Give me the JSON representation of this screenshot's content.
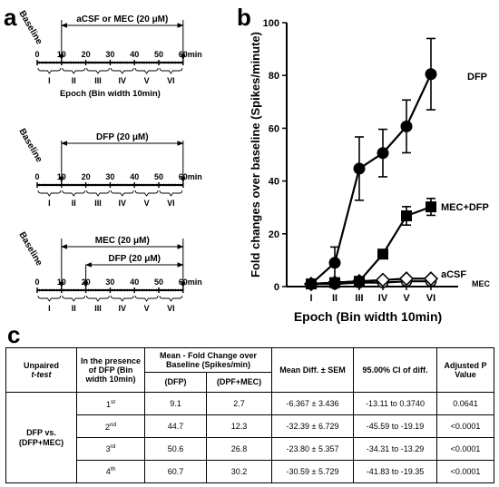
{
  "panels": {
    "a": {
      "label": "a",
      "schedules": [
        {
          "treatments": [
            {
              "label": "aCSF or MEC (20 μM)",
              "start": 10,
              "end": 60
            }
          ],
          "baseline_label": "Baseline",
          "ticks": [
            "0",
            "10",
            "20",
            "30",
            "40",
            "50",
            "60"
          ],
          "unit": "min",
          "epochs": [
            "I",
            "II",
            "III",
            "IV",
            "V",
            "VI"
          ],
          "epoch_caption": "Epoch (Bin width 10min)"
        },
        {
          "treatments": [
            {
              "label": "DFP (20 μM)",
              "start": 10,
              "end": 60
            }
          ],
          "baseline_label": "Baseline",
          "ticks": [
            "0",
            "10",
            "20",
            "30",
            "40",
            "50",
            "60"
          ],
          "unit": "min",
          "epochs": [
            "I",
            "II",
            "III",
            "IV",
            "V",
            "VI"
          ]
        },
        {
          "treatments": [
            {
              "label": "MEC (20 μM)",
              "start": 10,
              "end": 60
            },
            {
              "label": "DFP (20 μM)",
              "start": 20,
              "end": 60
            }
          ],
          "baseline_label": "Baseline",
          "ticks": [
            "0",
            "10",
            "20",
            "30",
            "40",
            "50",
            "60"
          ],
          "unit": "min",
          "epochs": [
            "I",
            "II",
            "III",
            "IV",
            "V",
            "VI"
          ]
        }
      ]
    },
    "b": {
      "label": "b"
    },
    "c": {
      "label": "c",
      "table": {
        "h_test": "Unpaired",
        "h_test2": "t-test",
        "h_presence": "In the presence of DFP (Bin width 10min)",
        "h_mean": "Mean - Fold Change over Baseline (Spikes/min)",
        "h_dfp": "(DFP)",
        "h_dpfmec": "(DPF+MEC)",
        "h_diff": "Mean Diff. ± SEM",
        "h_ci": "95.00% CI of diff.",
        "h_adj": "Adjusted P Value",
        "group": "DFP vs. (DFP+MEC)",
        "rows": [
          {
            "n": "1",
            "suf": "st",
            "dfp": "9.1",
            "mix": "2.7",
            "diff": "-6.367 ± 3.436",
            "ci": "-13.11 to 0.3740",
            "p": "0.0641"
          },
          {
            "n": "2",
            "suf": "nd",
            "dfp": "44.7",
            "mix": "12.3",
            "diff": "-32.39 ± 6.729",
            "ci": "-45.59 to -19.19",
            "p": "<0.0001"
          },
          {
            "n": "3",
            "suf": "rd",
            "dfp": "50.6",
            "mix": "26.8",
            "diff": "-23.80 ± 5.357",
            "ci": "-34.31 to -13.29",
            "p": "<0.0001"
          },
          {
            "n": "4",
            "suf": "th",
            "dfp": "60.7",
            "mix": "30.2",
            "diff": "-30.59 ± 5.729",
            "ci": "-41.83 to -19.35",
            "p": "<0.0001"
          }
        ]
      }
    }
  },
  "chart_data": {
    "type": "line",
    "categories": [
      "I",
      "II",
      "III",
      "IV",
      "V",
      "VI"
    ],
    "ylabel": "Fold changes over baseline (Spikes/minute)",
    "xlabel": "Epoch (Bin width 10min)",
    "ylim": [
      0,
      100
    ],
    "yticks": [
      0,
      20,
      40,
      60,
      80,
      100
    ],
    "series": [
      {
        "name": "DFP",
        "marker": "circle",
        "values": [
          1,
          9,
          44.7,
          50.6,
          60.7,
          80.5
        ],
        "errors": [
          0.5,
          6,
          12,
          9,
          10,
          13.5
        ]
      },
      {
        "name": "MEC+DFP",
        "marker": "square",
        "values": [
          1,
          1.5,
          2,
          12.3,
          26.8,
          30.2
        ],
        "errors": [
          0.3,
          0.5,
          0.8,
          1,
          3.5,
          3.2
        ]
      },
      {
        "name": "aCSF",
        "marker": "open-diamond",
        "values": [
          1,
          1.5,
          2,
          2.5,
          3,
          3
        ],
        "errors": [
          0.3,
          0.4,
          0.5,
          0.6,
          0.6,
          0.6
        ]
      },
      {
        "name": "MEC",
        "marker": "open-circle",
        "values": [
          1,
          1,
          1.5,
          1.5,
          2,
          2
        ],
        "errors": [
          0.2,
          0.2,
          0.3,
          0.3,
          0.3,
          0.3
        ]
      }
    ]
  }
}
